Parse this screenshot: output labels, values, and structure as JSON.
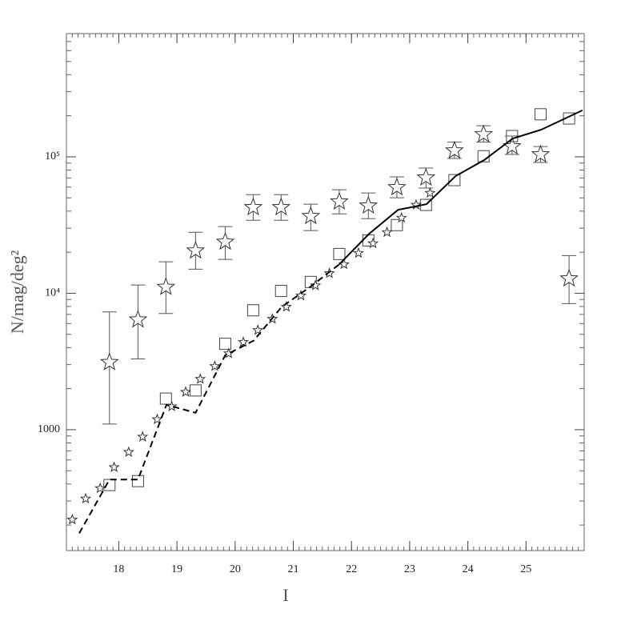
{
  "chart_data": {
    "type": "scatter",
    "x_label": "I",
    "y_label": "N/mag/deg²",
    "xlim": [
      17.1,
      26
    ],
    "xticks": [
      18,
      19,
      20,
      21,
      22,
      23,
      24,
      25
    ],
    "ylim": [
      130,
      800000
    ],
    "log_y": true,
    "yticks": [
      {
        "value": 1000,
        "label": "1000"
      },
      {
        "value": 10000,
        "label": "10⁴"
      },
      {
        "value": 100000,
        "label": "10⁵"
      }
    ],
    "color": "#000000",
    "series": [
      {
        "mode": "markers",
        "marker": "star-large",
        "x": [
          17.84,
          18.33,
          18.81,
          19.32,
          19.83,
          20.31,
          20.79,
          21.3,
          21.79,
          22.29,
          22.78,
          23.28,
          23.77,
          24.27,
          24.76,
          25.25,
          25.74
        ],
        "values": [
          3120,
          6400,
          11100,
          20500,
          23800,
          42600,
          42600,
          36700,
          46900,
          43800,
          59700,
          70300,
          111000,
          146000,
          119000,
          104000,
          12800
        ],
        "lower": [
          1100,
          3300,
          7100,
          15000,
          17700,
          34300,
          34300,
          28800,
          38200,
          35200,
          50100,
          59000,
          97300,
          128000,
          104000,
          91000,
          8400
        ],
        "upper": [
          7300,
          11500,
          17000,
          28000,
          30800,
          52800,
          52800,
          45000,
          57400,
          54300,
          71300,
          82800,
          128000,
          169000,
          142000,
          119000,
          18900
        ]
      },
      {
        "mode": "markers",
        "marker": "square",
        "x": [
          17.84,
          18.33,
          18.81,
          19.32,
          19.83,
          20.31,
          20.79,
          21.3,
          21.79,
          22.29,
          22.78,
          23.28,
          23.77,
          24.27,
          24.76,
          25.25,
          25.74
        ],
        "values": [
          393,
          420,
          1690,
          1940,
          4260,
          7500,
          10400,
          12100,
          19400,
          24400,
          31600,
          44400,
          67500,
          101000,
          142000,
          205000,
          191000
        ]
      },
      {
        "mode": "markers",
        "marker": "star-small",
        "x": [
          17.2,
          17.43,
          17.68,
          17.92,
          18.17,
          18.41,
          18.66,
          18.91,
          19.15,
          19.4,
          19.65,
          19.89,
          20.14,
          20.39,
          20.64,
          20.88,
          21.13,
          21.38,
          21.62,
          21.87,
          22.12,
          22.37,
          22.61,
          22.86,
          23.11,
          23.35
        ],
        "values": [
          219,
          312,
          372,
          530,
          685,
          886,
          1190,
          1480,
          1890,
          2350,
          2920,
          3620,
          4380,
          5360,
          6480,
          7940,
          9600,
          11400,
          14000,
          16300,
          19700,
          23200,
          28000,
          35700,
          44400,
          54300
        ]
      },
      {
        "mode": "line",
        "dash": "dashed",
        "x": [
          17.32,
          17.84,
          18.33,
          18.82,
          19.32,
          19.83,
          20.32,
          20.8,
          21.31,
          21.79
        ],
        "values": [
          174,
          431,
          431,
          1520,
          1330,
          3520,
          4500,
          7940,
          11300,
          16300
        ]
      },
      {
        "mode": "line",
        "dash": "solid",
        "x": [
          21.79,
          22.3,
          22.8,
          23.29,
          23.79,
          24.28,
          24.77,
          25.26,
          25.97
        ],
        "values": [
          16300,
          27200,
          40900,
          45000,
          72300,
          94700,
          136000,
          158000,
          219000
        ]
      }
    ]
  }
}
